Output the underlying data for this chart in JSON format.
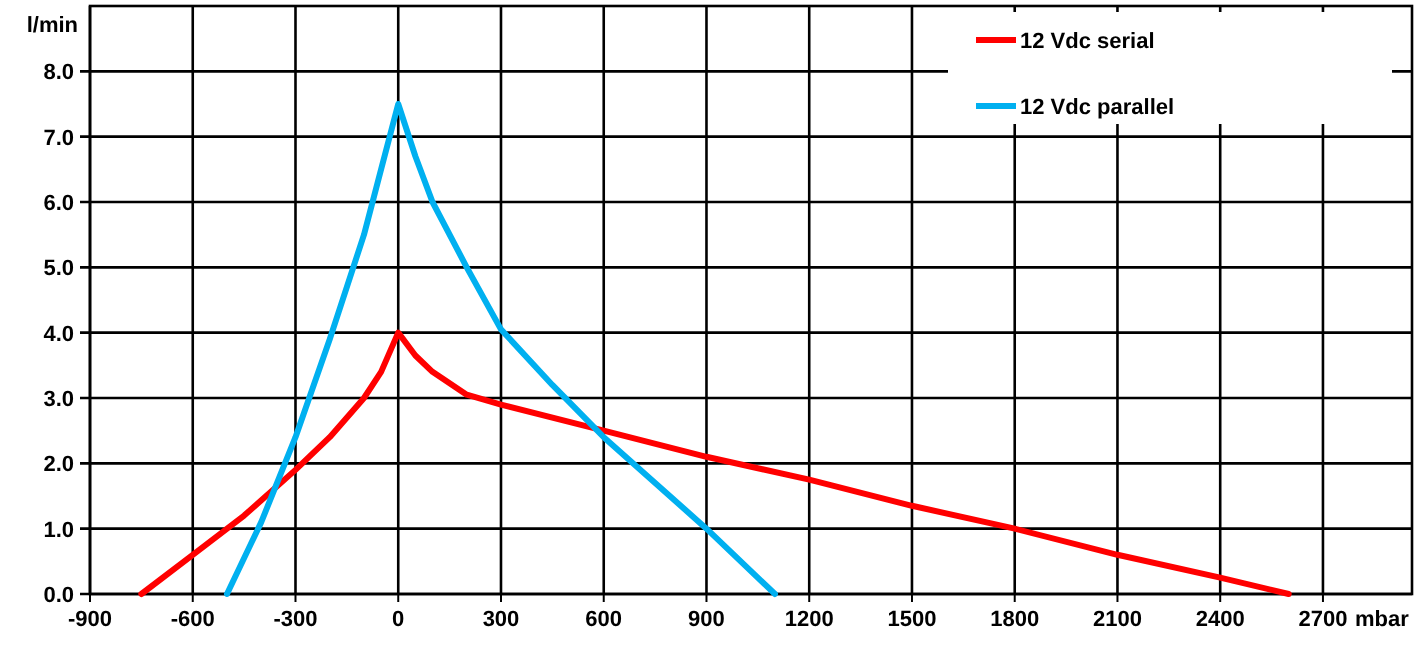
{
  "chart_data": {
    "type": "line",
    "xlabel": "mbar",
    "ylabel": "l/min",
    "xlim": [
      -900,
      2960
    ],
    "xticks": [
      -900,
      -600,
      -300,
      0,
      300,
      600,
      900,
      1200,
      1500,
      1800,
      2100,
      2400,
      2700
    ],
    "ylim": [
      0,
      9
    ],
    "yticks": [
      {
        "value": 0,
        "label": "0.0"
      },
      {
        "value": 1,
        "label": "1.0"
      },
      {
        "value": 2,
        "label": "2.0"
      },
      {
        "value": 3,
        "label": "3.0"
      },
      {
        "value": 4,
        "label": "4.0"
      },
      {
        "value": 5,
        "label": "5.0"
      },
      {
        "value": 6,
        "label": "6.0"
      },
      {
        "value": 7,
        "label": "7.0"
      },
      {
        "value": 8,
        "label": "8.0"
      }
    ],
    "grid": true,
    "legend": "top right",
    "marker": "none",
    "line_style": "solid",
    "series": [
      {
        "name": "12 Vdc serial",
        "color": "#ff0000",
        "x": [
          -750,
          -600,
          -450,
          -300,
          -200,
          -100,
          -50,
          0,
          50,
          100,
          200,
          300,
          600,
          900,
          1200,
          1500,
          1800,
          2100,
          2400,
          2600
        ],
        "values": [
          0,
          0.6,
          1.2,
          1.9,
          2.4,
          3.0,
          3.4,
          4.0,
          3.65,
          3.4,
          3.05,
          2.9,
          2.5,
          2.1,
          1.75,
          1.35,
          1.0,
          0.6,
          0.25,
          0
        ]
      },
      {
        "name": "12 Vdc parallel",
        "color": "#00b0f0",
        "x": [
          -500,
          -400,
          -300,
          -200,
          -100,
          -50,
          0,
          50,
          100,
          200,
          300,
          450,
          600,
          900,
          1100
        ],
        "values": [
          0,
          1.1,
          2.4,
          3.9,
          5.5,
          6.5,
          7.5,
          6.7,
          6.0,
          5.0,
          4.05,
          3.2,
          2.4,
          1.0,
          0
        ]
      }
    ]
  }
}
